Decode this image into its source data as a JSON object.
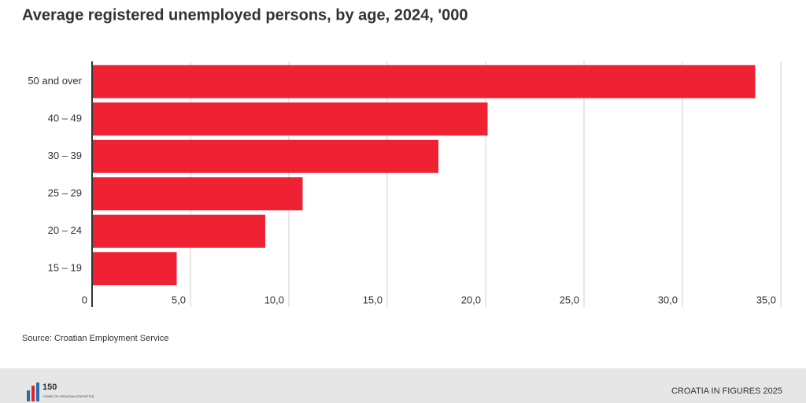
{
  "chart_data": {
    "type": "hbar",
    "title": "Average registered unemployed persons, by age, 2024, '000",
    "categories": [
      "50 and over",
      "40 – 49",
      "30 – 39",
      "25 – 29",
      "20 – 24",
      "15 – 19"
    ],
    "values": [
      33.7,
      20.1,
      17.6,
      10.7,
      8.8,
      4.3
    ],
    "color": "#ee2233",
    "xlim": [
      0,
      35
    ],
    "xticks": [
      0,
      {
        "value": 5,
        "label": "5,0"
      },
      {
        "value": 10,
        "label": "10,0"
      },
      {
        "value": 15,
        "label": "15,0"
      },
      {
        "value": 20,
        "label": "20,0"
      },
      {
        "value": 25,
        "label": "25,0"
      },
      {
        "value": 30,
        "label": "30,0"
      },
      {
        "value": 35,
        "label": "35,0"
      }
    ],
    "grid": true,
    "source": "Source: Croatian Employment Service"
  },
  "footer": {
    "logo_number": "150",
    "logo_text": "YEARS OF CROATIAN STATISTICS",
    "publication": "CROATIA IN FIGURES 2025"
  }
}
